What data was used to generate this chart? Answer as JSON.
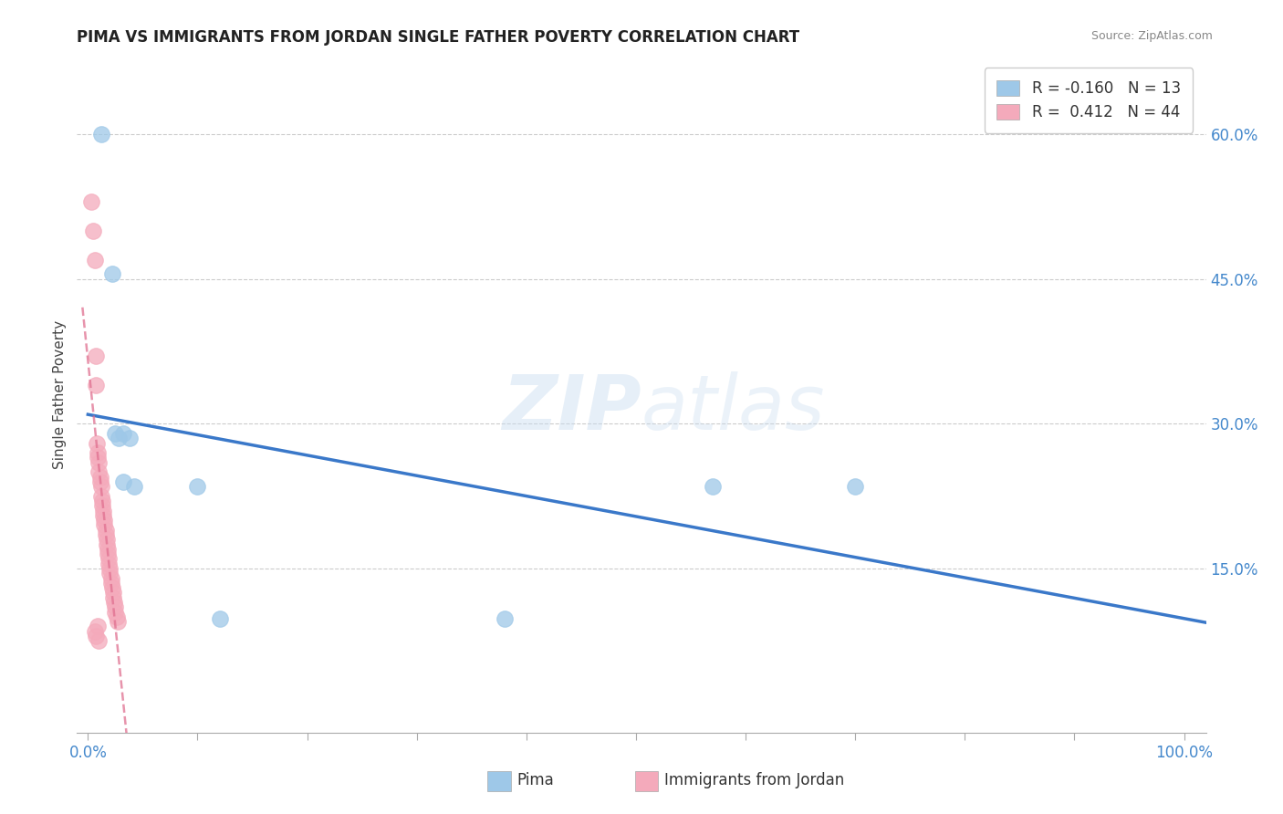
{
  "title": "PIMA VS IMMIGRANTS FROM JORDAN SINGLE FATHER POVERTY CORRELATION CHART",
  "source": "Source: ZipAtlas.com",
  "ylabel": "Single Father Poverty",
  "xlabel_ticks": [
    "0.0%",
    "",
    "",
    "",
    "",
    "",
    "",
    "",
    "",
    "",
    "100.0%"
  ],
  "xlabel_vals": [
    0.0,
    0.1,
    0.2,
    0.3,
    0.4,
    0.5,
    0.6,
    0.7,
    0.8,
    0.9,
    1.0
  ],
  "ylabel_ticks": [
    "15.0%",
    "30.0%",
    "45.0%",
    "60.0%"
  ],
  "ylabel_vals": [
    0.15,
    0.3,
    0.45,
    0.6
  ],
  "ylim": [
    -0.02,
    0.68
  ],
  "xlim": [
    -0.01,
    1.02
  ],
  "pima_R": -0.16,
  "pima_N": 13,
  "jordan_R": 0.412,
  "jordan_N": 44,
  "pima_color": "#9EC8E8",
  "jordan_color": "#F4AABB",
  "pima_line_color": "#3A78C9",
  "jordan_line_color": "#E07090",
  "pima_x": [
    0.012,
    0.022,
    0.025,
    0.028,
    0.032,
    0.038,
    0.032,
    0.042,
    0.1,
    0.57,
    0.7,
    0.12,
    0.38
  ],
  "pima_y": [
    0.6,
    0.455,
    0.29,
    0.285,
    0.29,
    0.285,
    0.24,
    0.235,
    0.235,
    0.235,
    0.235,
    0.098,
    0.098
  ],
  "jordan_x": [
    0.003,
    0.005,
    0.006,
    0.007,
    0.007,
    0.008,
    0.009,
    0.009,
    0.01,
    0.01,
    0.011,
    0.011,
    0.012,
    0.012,
    0.013,
    0.013,
    0.014,
    0.014,
    0.015,
    0.015,
    0.016,
    0.016,
    0.017,
    0.017,
    0.018,
    0.018,
    0.019,
    0.019,
    0.02,
    0.02,
    0.021,
    0.021,
    0.022,
    0.023,
    0.023,
    0.024,
    0.025,
    0.025,
    0.026,
    0.027,
    0.009,
    0.006,
    0.007,
    0.01
  ],
  "jordan_y": [
    0.53,
    0.5,
    0.47,
    0.37,
    0.34,
    0.28,
    0.27,
    0.265,
    0.26,
    0.25,
    0.245,
    0.24,
    0.235,
    0.225,
    0.22,
    0.215,
    0.21,
    0.205,
    0.2,
    0.195,
    0.19,
    0.185,
    0.18,
    0.175,
    0.17,
    0.165,
    0.16,
    0.155,
    0.15,
    0.145,
    0.14,
    0.135,
    0.13,
    0.125,
    0.12,
    0.115,
    0.11,
    0.105,
    0.1,
    0.095,
    0.09,
    0.085,
    0.08,
    0.075
  ]
}
